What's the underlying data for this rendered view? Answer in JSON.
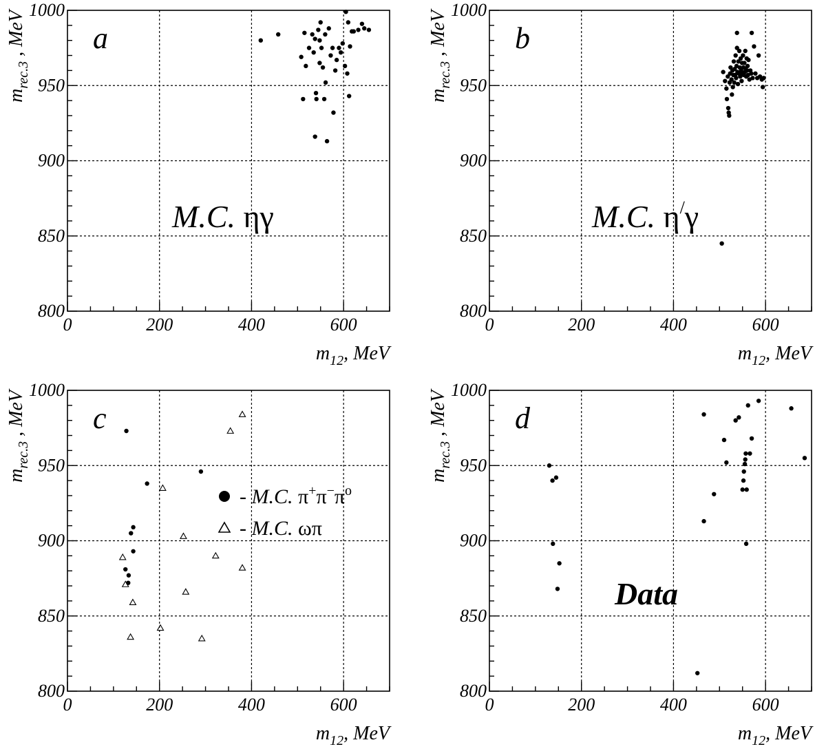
{
  "chart_data": [
    {
      "id": "a",
      "type": "scatter",
      "panel_letter": "a",
      "annotation": "M.C.",
      "annotation_greek": "ηγ",
      "annotation_sup": "",
      "annotation_greek2": "",
      "xlabel": "m",
      "xlabel_sub": "12",
      "xlabel_unit": ", MeV",
      "ylabel": "m",
      "ylabel_sub": "rec.3",
      "ylabel_unit": " , MeV",
      "xlim": [
        0,
        700
      ],
      "ylim": [
        800,
        1000
      ],
      "xticks": [
        "0",
        "200",
        "400",
        "600"
      ],
      "yticks": [
        "800",
        "850",
        "900",
        "950",
        "1000"
      ],
      "grid": true,
      "series": [
        {
          "marker": "dot",
          "points": [
            [
              420,
              980
            ],
            [
              458,
              984
            ],
            [
              508,
              969
            ],
            [
              512,
              941
            ],
            [
              515,
              985
            ],
            [
              518,
              963
            ],
            [
              525,
              975
            ],
            [
              532,
              984
            ],
            [
              535,
              972
            ],
            [
              538,
              981
            ],
            [
              540,
              945
            ],
            [
              541,
              941
            ],
            [
              538,
              916
            ],
            [
              545,
              987
            ],
            [
              548,
              980
            ],
            [
              548,
              965
            ],
            [
              550,
              992
            ],
            [
              552,
              975
            ],
            [
              555,
              962
            ],
            [
              558,
              941
            ],
            [
              560,
              984
            ],
            [
              561,
              952
            ],
            [
              564,
              913
            ],
            [
              568,
              988
            ],
            [
              572,
              970
            ],
            [
              576,
              975
            ],
            [
              578,
              932
            ],
            [
              582,
              960
            ],
            [
              585,
              967
            ],
            [
              590,
              975
            ],
            [
              594,
              972
            ],
            [
              598,
              978
            ],
            [
              603,
              963
            ],
            [
              605,
              999
            ],
            [
              608,
              958
            ],
            [
              610,
              992
            ],
            [
              612,
              943
            ],
            [
              614,
              976
            ],
            [
              618,
              986
            ],
            [
              622,
              986
            ],
            [
              632,
              987
            ],
            [
              640,
              991
            ],
            [
              645,
              988
            ],
            [
              655,
              987
            ]
          ]
        }
      ]
    },
    {
      "id": "b",
      "type": "scatter",
      "panel_letter": "b",
      "annotation": "M.C.",
      "annotation_greek": "η",
      "annotation_sup": "/",
      "annotation_greek2": "γ",
      "xlabel": "m",
      "xlabel_sub": "12",
      "xlabel_unit": ", MeV",
      "ylabel": "m",
      "ylabel_sub": "rec.3",
      "ylabel_unit": " , MeV",
      "xlim": [
        0,
        700
      ],
      "ylim": [
        800,
        1000
      ],
      "xticks": [
        "0",
        "200",
        "400",
        "600"
      ],
      "yticks": [
        "800",
        "850",
        "900",
        "950",
        "1000"
      ],
      "grid": true,
      "series": [
        {
          "marker": "dot",
          "points": [
            [
              505,
              845
            ],
            [
              508,
              959
            ],
            [
              512,
              953
            ],
            [
              515,
              948
            ],
            [
              516,
              941
            ],
            [
              518,
              956
            ],
            [
              519,
              935
            ],
            [
              520,
              932
            ],
            [
              521,
              930
            ],
            [
              522,
              952
            ],
            [
              523,
              958
            ],
            [
              524,
              962
            ],
            [
              526,
              954
            ],
            [
              527,
              944
            ],
            [
              528,
              960
            ],
            [
              529,
              949
            ],
            [
              530,
              957
            ],
            [
              531,
              966
            ],
            [
              532,
              952
            ],
            [
              533,
              961
            ],
            [
              534,
              957
            ],
            [
              535,
              970
            ],
            [
              536,
              955
            ],
            [
              537,
              963
            ],
            [
              538,
              975
            ],
            [
              538,
              985
            ],
            [
              539,
              959
            ],
            [
              540,
              951
            ],
            [
              541,
              966
            ],
            [
              542,
              958
            ],
            [
              543,
              973
            ],
            [
              544,
              962
            ],
            [
              545,
              956
            ],
            [
              546,
              968
            ],
            [
              547,
              960
            ],
            [
              548,
              953
            ],
            [
              549,
              965
            ],
            [
              550,
              958
            ],
            [
              551,
              970
            ],
            [
              552,
              962
            ],
            [
              553,
              957
            ],
            [
              554,
              965
            ],
            [
              555,
              959
            ],
            [
              556,
              973
            ],
            [
              557,
              961
            ],
            [
              558,
              956
            ],
            [
              559,
              968
            ],
            [
              560,
              960
            ],
            [
              561,
              963
            ],
            [
              562,
              957
            ],
            [
              563,
              967
            ],
            [
              565,
              954
            ],
            [
              567,
              960
            ],
            [
              569,
              958
            ],
            [
              570,
              985
            ],
            [
              572,
              955
            ],
            [
              575,
              976
            ],
            [
              578,
              958
            ],
            [
              582,
              955
            ],
            [
              585,
              970
            ],
            [
              588,
              956
            ],
            [
              592,
              954
            ],
            [
              594,
              949
            ],
            [
              596,
              955
            ]
          ]
        }
      ]
    },
    {
      "id": "c",
      "type": "scatter",
      "panel_letter": "c",
      "xlabel": "m",
      "xlabel_sub": "12",
      "xlabel_unit": ", MeV",
      "ylabel": "m",
      "ylabel_sub": "rec.3",
      "ylabel_unit": " , MeV",
      "xlim": [
        0,
        700
      ],
      "ylim": [
        800,
        1000
      ],
      "xticks": [
        "0",
        "200",
        "400",
        "600"
      ],
      "yticks": [
        "800",
        "850",
        "900",
        "950",
        "1000"
      ],
      "grid": true,
      "legend": [
        {
          "marker": "dot",
          "prefix": "- M.C. ",
          "text": "π",
          "sup1": "+",
          "text2": "π",
          "sup2": "−",
          "text3": "π",
          "sup3": "o"
        },
        {
          "marker": "triangle",
          "prefix": "- M.C. ",
          "text": "ωπ",
          "sup1": "",
          "text2": "",
          "sup2": "",
          "text3": "",
          "sup3": ""
        }
      ],
      "series": [
        {
          "name": "M.C. π+π−πo",
          "marker": "dot",
          "points": [
            [
              128,
              973
            ],
            [
              173,
              938
            ],
            [
              290,
              946
            ],
            [
              143,
              909
            ],
            [
              138,
              905
            ],
            [
              143,
              893
            ],
            [
              126,
              881
            ],
            [
              133,
              877
            ],
            [
              132,
              872
            ]
          ]
        },
        {
          "name": "M.C. ωπ",
          "marker": "triangle",
          "points": [
            [
              380,
              984
            ],
            [
              354,
              973
            ],
            [
              207,
              935
            ],
            [
              252,
              903
            ],
            [
              322,
              890
            ],
            [
              120,
              889
            ],
            [
              380,
              882
            ],
            [
              126,
              871
            ],
            [
              257,
              866
            ],
            [
              142,
              859
            ],
            [
              202,
              842
            ],
            [
              137,
              836
            ],
            [
              292,
              835
            ]
          ]
        }
      ]
    },
    {
      "id": "d",
      "type": "scatter",
      "panel_letter": "d",
      "annotation": "Data",
      "xlabel": "m",
      "xlabel_sub": "12",
      "xlabel_unit": ", MeV",
      "ylabel": "m",
      "ylabel_sub": "rec.3",
      "ylabel_unit": " , MeV",
      "xlim": [
        0,
        700
      ],
      "ylim": [
        800,
        1000
      ],
      "xticks": [
        "0",
        "200",
        "400",
        "600"
      ],
      "yticks": [
        "800",
        "850",
        "900",
        "950",
        "1000"
      ],
      "grid": true,
      "series": [
        {
          "marker": "dot",
          "points": [
            [
              130,
              950
            ],
            [
              137,
              940
            ],
            [
              145,
              942
            ],
            [
              138,
              898
            ],
            [
              152,
              885
            ],
            [
              148,
              868
            ],
            [
              452,
              812
            ],
            [
              466,
              984
            ],
            [
              466,
              913
            ],
            [
              488,
              931
            ],
            [
              510,
              967
            ],
            [
              515,
              952
            ],
            [
              535,
              980
            ],
            [
              542,
              982
            ],
            [
              550,
              934
            ],
            [
              552,
              940
            ],
            [
              553,
              946
            ],
            [
              555,
              951
            ],
            [
              556,
              954
            ],
            [
              557,
              958
            ],
            [
              558,
              898
            ],
            [
              559,
              934
            ],
            [
              562,
              990
            ],
            [
              566,
              958
            ],
            [
              570,
              968
            ],
            [
              585,
              993
            ],
            [
              656,
              988
            ],
            [
              685,
              955
            ]
          ]
        }
      ]
    }
  ]
}
